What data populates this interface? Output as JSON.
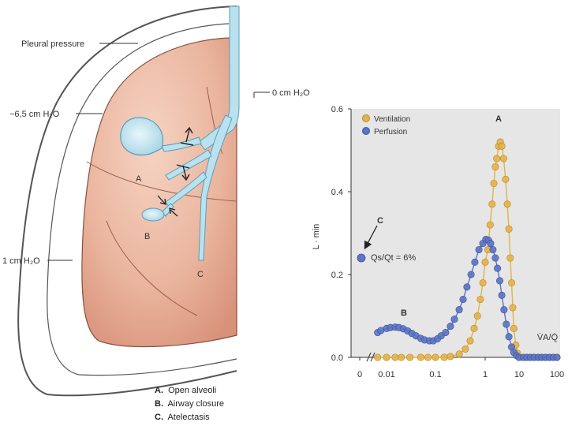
{
  "lung_diagram": {
    "labels": {
      "pleural_pressure": "Pleural pressure",
      "apex_pressure": "−6,5 cm H₂O",
      "airway_pressure": "0 cm H₂O",
      "base_pressure": "1 cm H₂O",
      "region_a": "A",
      "region_b": "B",
      "region_c": "C"
    },
    "caption": [
      {
        "letter": "A.",
        "text": "Open alveoli"
      },
      {
        "letter": "B.",
        "text": "Airway closure"
      },
      {
        "letter": "C.",
        "text": "Atelectasis"
      }
    ]
  },
  "chart_data": {
    "type": "scatter",
    "ylabel": "L ∙ min",
    "xlabel": "V̇A/Q̇",
    "x_scale": "log",
    "xlim": [
      0.005,
      100
    ],
    "ylim": [
      0,
      0.6
    ],
    "x_ticks": [
      {
        "label": "0",
        "value": null
      },
      {
        "label": "0.01",
        "value": 0.01
      },
      {
        "label": "0.1",
        "value": 0.1
      },
      {
        "label": "1",
        "value": 1
      },
      {
        "label": "10",
        "value": 10
      },
      {
        "label": "100",
        "value": 100
      }
    ],
    "y_ticks": [
      "0.0",
      "0.2",
      "0.4",
      "0.6"
    ],
    "y_tick_values": [
      0,
      0.2,
      0.4,
      0.6
    ],
    "legend_position": "top-left",
    "series": [
      {
        "name": "Ventilation",
        "color": "#e3b24a",
        "points": [
          [
            0.007,
            0
          ],
          [
            0.01,
            0
          ],
          [
            0.015,
            0
          ],
          [
            0.02,
            0
          ],
          [
            0.03,
            0
          ],
          [
            0.05,
            0
          ],
          [
            0.07,
            0
          ],
          [
            0.1,
            0
          ],
          [
            0.15,
            0
          ],
          [
            0.2,
            0.002
          ],
          [
            0.3,
            0.008
          ],
          [
            0.4,
            0.02
          ],
          [
            0.5,
            0.04
          ],
          [
            0.6,
            0.07
          ],
          [
            0.7,
            0.1
          ],
          [
            0.8,
            0.14
          ],
          [
            0.9,
            0.18
          ],
          [
            1.0,
            0.23
          ],
          [
            1.2,
            0.26
          ],
          [
            1.4,
            0.32
          ],
          [
            1.6,
            0.37
          ],
          [
            1.8,
            0.42
          ],
          [
            2.0,
            0.46
          ],
          [
            2.2,
            0.48
          ],
          [
            2.5,
            0.51
          ],
          [
            2.8,
            0.52
          ],
          [
            3.1,
            0.51
          ],
          [
            3.5,
            0.48
          ],
          [
            4.0,
            0.43
          ],
          [
            4.5,
            0.37
          ],
          [
            5.0,
            0.31
          ],
          [
            5.5,
            0.24
          ],
          [
            6.0,
            0.18
          ],
          [
            6.5,
            0.12
          ],
          [
            7.0,
            0.07
          ],
          [
            8.0,
            0.03
          ],
          [
            9.0,
            0.01
          ],
          [
            10,
            0
          ],
          [
            13,
            0
          ],
          [
            16,
            0
          ],
          [
            20,
            0
          ],
          [
            25,
            0
          ],
          [
            32,
            0
          ],
          [
            40,
            0
          ],
          [
            50,
            0
          ],
          [
            63,
            0
          ],
          [
            80,
            0
          ],
          [
            100,
            0
          ]
        ]
      },
      {
        "name": "Perfusion",
        "color": "#5b74c4",
        "points": [
          [
            0.007,
            0.06
          ],
          [
            0.008,
            0.065
          ],
          [
            0.01,
            0.07
          ],
          [
            0.012,
            0.072
          ],
          [
            0.015,
            0.073
          ],
          [
            0.018,
            0.072
          ],
          [
            0.022,
            0.069
          ],
          [
            0.027,
            0.064
          ],
          [
            0.033,
            0.058
          ],
          [
            0.04,
            0.052
          ],
          [
            0.05,
            0.046
          ],
          [
            0.06,
            0.042
          ],
          [
            0.075,
            0.04
          ],
          [
            0.09,
            0.04
          ],
          [
            0.11,
            0.045
          ],
          [
            0.13,
            0.052
          ],
          [
            0.16,
            0.06
          ],
          [
            0.2,
            0.075
          ],
          [
            0.24,
            0.092
          ],
          [
            0.3,
            0.115
          ],
          [
            0.36,
            0.14
          ],
          [
            0.43,
            0.17
          ],
          [
            0.52,
            0.2
          ],
          [
            0.62,
            0.23
          ],
          [
            0.75,
            0.26
          ],
          [
            0.9,
            0.275
          ],
          [
            1.05,
            0.285
          ],
          [
            1.25,
            0.283
          ],
          [
            1.45,
            0.275
          ],
          [
            1.7,
            0.26
          ],
          [
            2.0,
            0.24
          ],
          [
            2.3,
            0.215
          ],
          [
            2.7,
            0.185
          ],
          [
            3.1,
            0.15
          ],
          [
            3.6,
            0.115
          ],
          [
            4.2,
            0.08
          ],
          [
            5.0,
            0.05
          ],
          [
            6.0,
            0.025
          ],
          [
            7.0,
            0.012
          ],
          [
            8.5,
            0.004
          ],
          [
            10,
            0
          ],
          [
            13,
            0
          ],
          [
            16,
            0
          ],
          [
            20,
            0
          ],
          [
            25,
            0
          ],
          [
            32,
            0
          ],
          [
            40,
            0
          ],
          [
            50,
            0
          ],
          [
            63,
            0
          ],
          [
            80,
            0
          ],
          [
            100,
            0
          ]
        ]
      }
    ],
    "shunt_point": {
      "x_label": "0",
      "y": 0.24,
      "label": "Qs/Qt = 6%"
    },
    "annotations": [
      {
        "text": "A",
        "near": "ventilation-peak"
      },
      {
        "text": "B",
        "near": "low-VA/Q-perfusion-hump"
      },
      {
        "text": "C",
        "near": "shunt-point"
      }
    ]
  }
}
